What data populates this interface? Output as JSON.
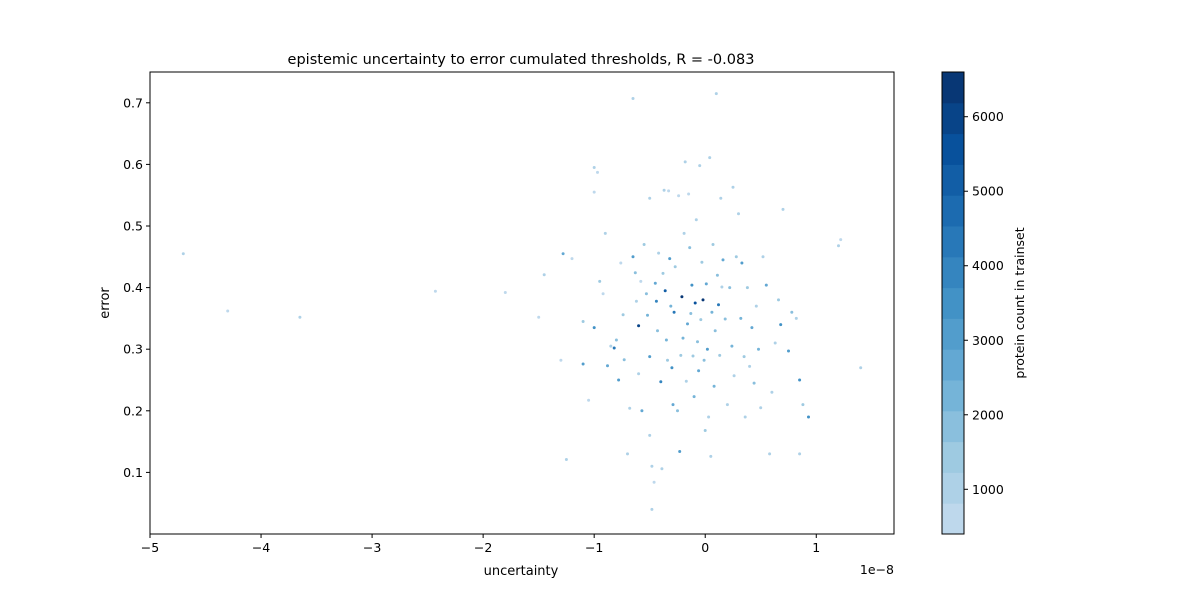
{
  "chart_data": {
    "type": "scatter",
    "title": "epistemic uncertainty to error cumulated thresholds, R = -0.083",
    "xlabel": "uncertainty",
    "ylabel": "error",
    "x_offset_label": "1e−8",
    "x_scale_exponent": -8,
    "xlim": [
      -5.0,
      1.7
    ],
    "ylim": [
      0.0,
      0.75
    ],
    "xticks": [
      -5,
      -4,
      -3,
      -2,
      -1,
      0,
      1
    ],
    "xtick_labels": [
      "−5",
      "−4",
      "−3",
      "−2",
      "−1",
      "0",
      "1"
    ],
    "yticks": [
      0.1,
      0.2,
      0.3,
      0.4,
      0.5,
      0.6,
      0.7
    ],
    "ytick_labels": [
      "0.1",
      "0.2",
      "0.3",
      "0.4",
      "0.5",
      "0.6",
      "0.7"
    ],
    "grid": false,
    "colorbar": {
      "label": "protein count in trainset",
      "range": [
        400,
        6600
      ],
      "ticks": [
        1000,
        2000,
        3000,
        4000,
        5000,
        6000
      ],
      "tick_labels": [
        "1000",
        "2000",
        "3000",
        "4000",
        "5000",
        "6000"
      ],
      "colormap": "Blues",
      "levels": 15,
      "color_stops": [
        "#c6dbef",
        "#9ecae1",
        "#6baed6",
        "#4292c6",
        "#2171b5",
        "#08519c",
        "#08306b"
      ]
    },
    "point_units_note": "x values shown in units of 1e-8",
    "points": [
      [
        -4.7,
        0.455,
        900
      ],
      [
        -4.3,
        0.362,
        800
      ],
      [
        -3.65,
        0.352,
        1200
      ],
      [
        -2.43,
        0.394,
        800
      ],
      [
        -1.8,
        0.392,
        700
      ],
      [
        -1.5,
        0.352,
        700
      ],
      [
        -1.45,
        0.421,
        900
      ],
      [
        -1.3,
        0.282,
        800
      ],
      [
        -1.25,
        0.121,
        900
      ],
      [
        -1.2,
        0.447,
        700
      ],
      [
        -1.28,
        0.455,
        2500
      ],
      [
        -1.0,
        0.595,
        900
      ],
      [
        -0.97,
        0.587,
        800
      ],
      [
        -1.0,
        0.555,
        800
      ],
      [
        -1.1,
        0.345,
        1500
      ],
      [
        -1.1,
        0.276,
        3000
      ],
      [
        -1.05,
        0.217,
        800
      ],
      [
        -1.0,
        0.335,
        3500
      ],
      [
        -0.95,
        0.41,
        1500
      ],
      [
        -0.92,
        0.39,
        700
      ],
      [
        -0.9,
        0.488,
        1200
      ],
      [
        -0.88,
        0.273,
        2500
      ],
      [
        -0.85,
        0.305,
        1000
      ],
      [
        -0.82,
        0.302,
        4500
      ],
      [
        -0.8,
        0.315,
        1800
      ],
      [
        -0.78,
        0.25,
        3200
      ],
      [
        -0.76,
        0.44,
        800
      ],
      [
        -0.74,
        0.356,
        1600
      ],
      [
        -0.73,
        0.283,
        2000
      ],
      [
        -0.7,
        0.13,
        900
      ],
      [
        -0.68,
        0.204,
        1200
      ],
      [
        -0.65,
        0.707,
        900
      ],
      [
        -0.65,
        0.45,
        3000
      ],
      [
        -0.63,
        0.424,
        1800
      ],
      [
        -0.62,
        0.378,
        1000
      ],
      [
        -0.6,
        0.338,
        5800
      ],
      [
        -0.6,
        0.26,
        1200
      ],
      [
        -0.58,
        0.41,
        800
      ],
      [
        -0.57,
        0.2,
        2800
      ],
      [
        -0.55,
        0.47,
        1400
      ],
      [
        -0.53,
        0.39,
        1900
      ],
      [
        -0.52,
        0.355,
        2200
      ],
      [
        -0.5,
        0.545,
        900
      ],
      [
        -0.5,
        0.288,
        3200
      ],
      [
        -0.5,
        0.16,
        900
      ],
      [
        -0.48,
        0.04,
        900
      ],
      [
        -0.48,
        0.11,
        1000
      ],
      [
        -0.46,
        0.084,
        800
      ],
      [
        -0.45,
        0.407,
        2600
      ],
      [
        -0.44,
        0.378,
        3800
      ],
      [
        -0.43,
        0.33,
        1700
      ],
      [
        -0.42,
        0.456,
        900
      ],
      [
        -0.4,
        0.247,
        4100
      ],
      [
        -0.39,
        0.106,
        1000
      ],
      [
        -0.38,
        0.423,
        1600
      ],
      [
        -0.37,
        0.558,
        900
      ],
      [
        -0.36,
        0.395,
        5200
      ],
      [
        -0.35,
        0.315,
        2400
      ],
      [
        -0.34,
        0.282,
        1500
      ],
      [
        -0.33,
        0.557,
        800
      ],
      [
        -0.32,
        0.447,
        3100
      ],
      [
        -0.31,
        0.37,
        2100
      ],
      [
        -0.3,
        0.27,
        3300
      ],
      [
        -0.29,
        0.21,
        2600
      ],
      [
        -0.28,
        0.36,
        4400
      ],
      [
        -0.27,
        0.434,
        1300
      ],
      [
        -0.25,
        0.2,
        1700
      ],
      [
        -0.24,
        0.549,
        800
      ],
      [
        -0.23,
        0.134,
        2900
      ],
      [
        -0.22,
        0.29,
        1500
      ],
      [
        -0.21,
        0.385,
        6500
      ],
      [
        -0.2,
        0.318,
        2300
      ],
      [
        -0.19,
        0.488,
        900
      ],
      [
        -0.18,
        0.604,
        900
      ],
      [
        -0.17,
        0.248,
        1100
      ],
      [
        -0.16,
        0.341,
        2700
      ],
      [
        -0.15,
        0.552,
        800
      ],
      [
        -0.14,
        0.465,
        2000
      ],
      [
        -0.13,
        0.358,
        1800
      ],
      [
        -0.12,
        0.404,
        3300
      ],
      [
        -0.11,
        0.289,
        1400
      ],
      [
        -0.1,
        0.223,
        2200
      ],
      [
        -0.09,
        0.375,
        5500
      ],
      [
        -0.08,
        0.51,
        1000
      ],
      [
        -0.07,
        0.312,
        1800
      ],
      [
        -0.06,
        0.265,
        2600
      ],
      [
        -0.05,
        0.598,
        900
      ],
      [
        -0.04,
        0.348,
        1500
      ],
      [
        -0.03,
        0.441,
        1300
      ],
      [
        -0.02,
        0.38,
        6200
      ],
      [
        -0.01,
        0.282,
        2000
      ],
      [
        0.0,
        0.168,
        1400
      ],
      [
        0.01,
        0.406,
        2800
      ],
      [
        0.02,
        0.3,
        3200
      ],
      [
        0.03,
        0.19,
        1000
      ],
      [
        0.04,
        0.611,
        900
      ],
      [
        0.05,
        0.126,
        900
      ],
      [
        0.06,
        0.36,
        2400
      ],
      [
        0.07,
        0.47,
        1500
      ],
      [
        0.08,
        0.24,
        2200
      ],
      [
        0.09,
        0.33,
        1800
      ],
      [
        0.1,
        0.715,
        900
      ],
      [
        0.11,
        0.42,
        1700
      ],
      [
        0.12,
        0.372,
        4200
      ],
      [
        0.13,
        0.29,
        1400
      ],
      [
        0.14,
        0.545,
        900
      ],
      [
        0.15,
        0.401,
        1100
      ],
      [
        0.16,
        0.445,
        2600
      ],
      [
        0.18,
        0.349,
        1700
      ],
      [
        0.2,
        0.21,
        1200
      ],
      [
        0.22,
        0.4,
        1900
      ],
      [
        0.24,
        0.305,
        2300
      ],
      [
        0.25,
        0.563,
        900
      ],
      [
        0.26,
        0.257,
        1100
      ],
      [
        0.28,
        0.45,
        1500
      ],
      [
        0.3,
        0.52,
        900
      ],
      [
        0.32,
        0.35,
        2100
      ],
      [
        0.33,
        0.44,
        3100
      ],
      [
        0.35,
        0.288,
        1500
      ],
      [
        0.36,
        0.19,
        900
      ],
      [
        0.38,
        0.4,
        1600
      ],
      [
        0.4,
        0.272,
        1000
      ],
      [
        0.42,
        0.335,
        2600
      ],
      [
        0.44,
        0.245,
        1800
      ],
      [
        0.46,
        0.37,
        900
      ],
      [
        0.48,
        0.3,
        2200
      ],
      [
        0.5,
        0.205,
        900
      ],
      [
        0.52,
        0.45,
        1100
      ],
      [
        0.55,
        0.404,
        2500
      ],
      [
        0.58,
        0.13,
        900
      ],
      [
        0.6,
        0.23,
        1200
      ],
      [
        0.63,
        0.31,
        1000
      ],
      [
        0.66,
        0.38,
        1400
      ],
      [
        0.68,
        0.34,
        3600
      ],
      [
        0.7,
        0.527,
        900
      ],
      [
        0.75,
        0.297,
        3000
      ],
      [
        0.78,
        0.36,
        1800
      ],
      [
        0.82,
        0.35,
        1100
      ],
      [
        0.85,
        0.25,
        3400
      ],
      [
        0.85,
        0.13,
        1000
      ],
      [
        0.88,
        0.21,
        1300
      ],
      [
        0.93,
        0.19,
        3500
      ],
      [
        1.2,
        0.468,
        900
      ],
      [
        1.22,
        0.478,
        800
      ],
      [
        1.4,
        0.27,
        900
      ]
    ]
  }
}
